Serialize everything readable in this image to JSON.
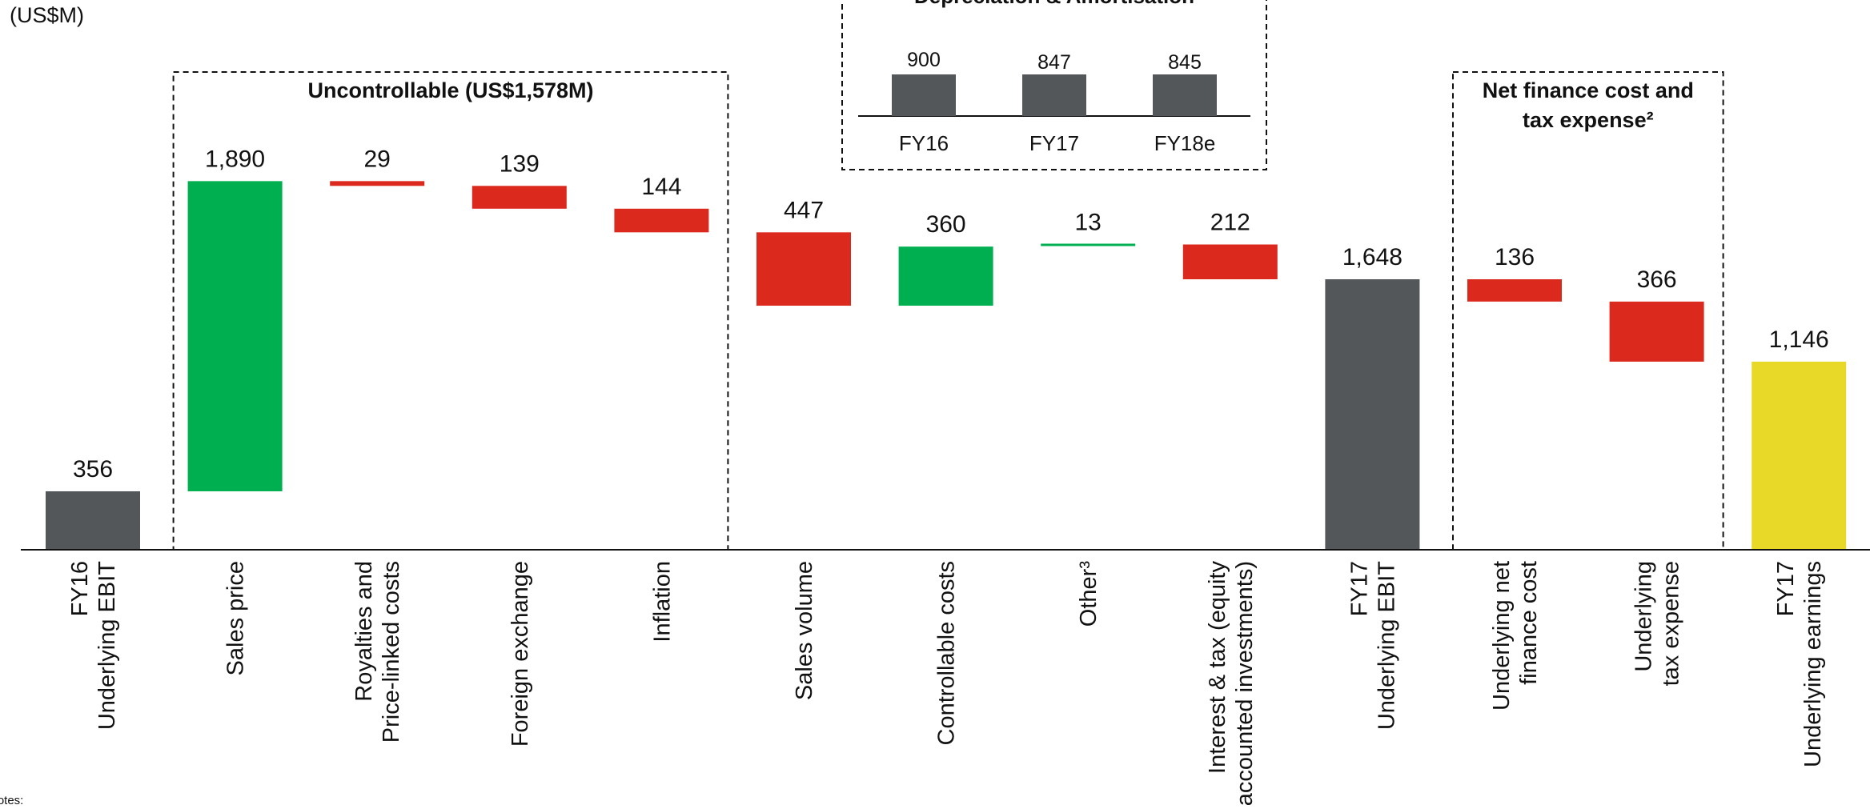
{
  "unit_label": "(US$M)",
  "footnote": "Notes:",
  "colors": {
    "grey": "#53575a",
    "green": "#00b050",
    "red": "#dc291e",
    "yellow": "#e8d827",
    "axis": "#111111",
    "box": "#111111"
  },
  "chart_data": {
    "type": "waterfall",
    "ylabel": "(US$M)",
    "steps": [
      {
        "label_lines": [
          "FY16",
          "Underlying EBIT"
        ],
        "value": 356,
        "value_label": "356",
        "kind": "total",
        "color": "grey"
      },
      {
        "label_lines": [
          "Sales price"
        ],
        "value": 1890,
        "value_label": "1,890",
        "kind": "increase",
        "color": "green"
      },
      {
        "label_lines": [
          "Royalties and",
          "Price-linked costs"
        ],
        "value": -29,
        "value_label": "29",
        "kind": "decrease",
        "color": "red"
      },
      {
        "label_lines": [
          "Foreign exchange"
        ],
        "value": -139,
        "value_label": "139",
        "kind": "decrease",
        "color": "red"
      },
      {
        "label_lines": [
          "Inflation"
        ],
        "value": -144,
        "value_label": "144",
        "kind": "decrease",
        "color": "red"
      },
      {
        "label_lines": [
          "Sales volume"
        ],
        "value": -447,
        "value_label": "447",
        "kind": "decrease",
        "color": "red"
      },
      {
        "label_lines": [
          "Controllable costs"
        ],
        "value": 360,
        "value_label": "360",
        "kind": "increase",
        "color": "green"
      },
      {
        "label_lines": [
          "Other³"
        ],
        "value": 13,
        "value_label": "13",
        "kind": "increase",
        "color": "green"
      },
      {
        "label_lines": [
          "Interest & tax (equity",
          "accounted investments)"
        ],
        "value": -212,
        "value_label": "212",
        "kind": "decrease",
        "color": "red"
      },
      {
        "label_lines": [
          "FY17",
          "Underlying EBIT"
        ],
        "value": 1648,
        "value_label": "1,648",
        "kind": "total",
        "color": "grey"
      },
      {
        "label_lines": [
          "Underlying net",
          "finance cost"
        ],
        "value": -136,
        "value_label": "136",
        "kind": "decrease",
        "color": "red"
      },
      {
        "label_lines": [
          "Underlying",
          "tax expense"
        ],
        "value": -366,
        "value_label": "366",
        "kind": "decrease",
        "color": "red"
      },
      {
        "label_lines": [
          "FY17",
          "Underlying earnings"
        ],
        "value": 1146,
        "value_label": "1,146",
        "kind": "total",
        "color": "yellow"
      }
    ],
    "groups": [
      {
        "title_lines": [
          "Uncontrollable (US$1,578M)"
        ],
        "from_step": 1,
        "to_step": 4
      },
      {
        "title_lines": [
          "Net finance cost and",
          "tax expense²"
        ],
        "from_step": 10,
        "to_step": 11
      }
    ],
    "inset": {
      "type": "stacked-bar",
      "title": "Depreciation & Amortisation",
      "categories": [
        "FY16",
        "FY17",
        "FY18e"
      ],
      "totals": [
        900,
        847,
        845
      ],
      "total_labels": [
        "900",
        "847",
        "845"
      ]
    }
  }
}
